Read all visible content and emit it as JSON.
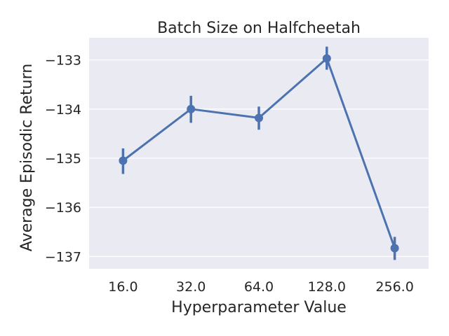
{
  "chart_data": {
    "type": "line",
    "title": "Batch Size on Halfcheetah",
    "xlabel": "Hyperparameter Value",
    "ylabel": "Average Episodic Return",
    "categories": [
      "16.0",
      "32.0",
      "64.0",
      "128.0",
      "256.0"
    ],
    "series": [
      {
        "values": [
          -135.05,
          -134.0,
          -134.18,
          -132.97,
          -136.83
        ],
        "err_low": [
          -135.32,
          -134.28,
          -134.42,
          -133.2,
          -137.07
        ],
        "err_high": [
          -134.8,
          -133.73,
          -133.95,
          -132.73,
          -136.6
        ],
        "color": "#4c72b0"
      }
    ],
    "ylim": [
      -137.25,
      -132.55
    ],
    "yticks": [
      -133,
      -134,
      -135,
      -136,
      -137
    ],
    "ytick_labels": [
      "−133",
      "−134",
      "−135",
      "−136",
      "−137"
    ],
    "grid": true,
    "background": "#eaeaf2",
    "grid_color": "#ffffff"
  }
}
